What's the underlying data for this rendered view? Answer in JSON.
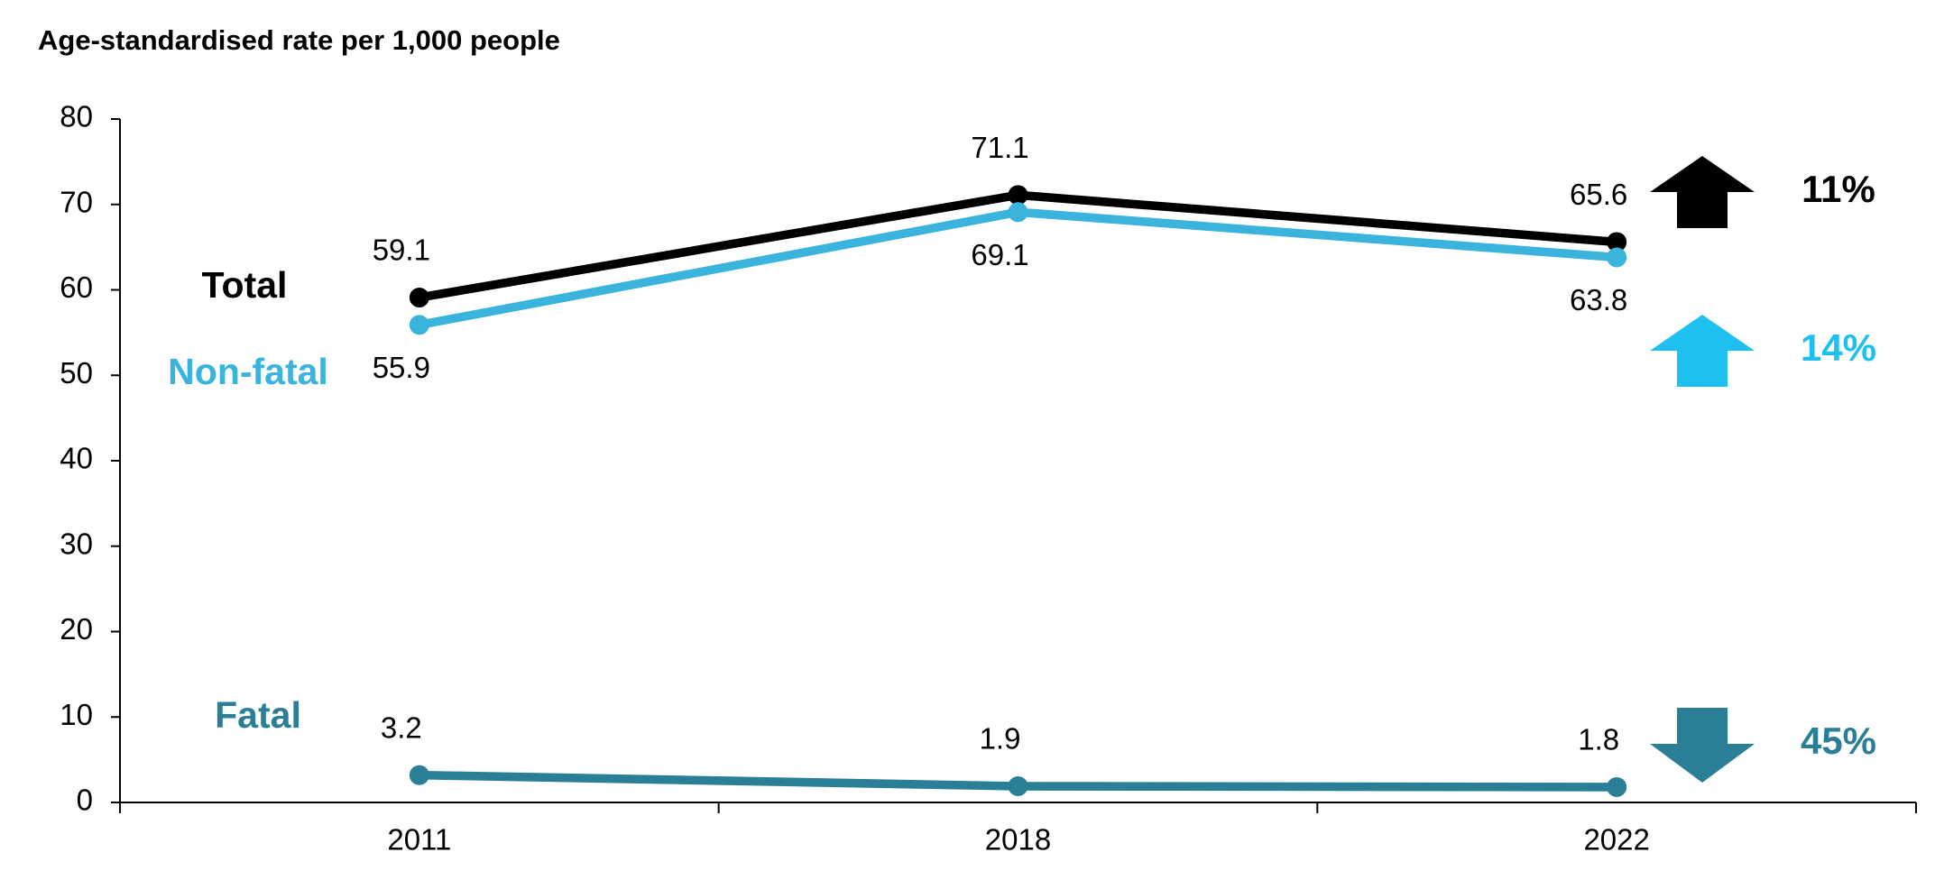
{
  "chart_data": {
    "type": "line",
    "title": "Age-standardised rate per 1,000 people",
    "categories": [
      "2011",
      "2018",
      "2022"
    ],
    "series": [
      {
        "name": "Total",
        "color": "#000000",
        "values": [
          59.1,
          71.1,
          65.6
        ],
        "label_position": "above",
        "change_label": "11%",
        "change_direction": "up"
      },
      {
        "name": "Non-fatal",
        "color": "#3ab4dc",
        "values": [
          55.9,
          69.1,
          63.8
        ],
        "label_position": "below",
        "change_label": "14%",
        "change_direction": "up",
        "change_color": "#1fc0f0"
      },
      {
        "name": "Fatal",
        "color": "#2a7f96",
        "values": [
          3.2,
          1.9,
          1.8
        ],
        "label_position": "above",
        "change_label": "45%",
        "change_direction": "down"
      }
    ],
    "ylim": [
      0,
      80
    ],
    "yticks": [
      0,
      10,
      20,
      30,
      40,
      50,
      60,
      70,
      80
    ],
    "grid": false
  }
}
